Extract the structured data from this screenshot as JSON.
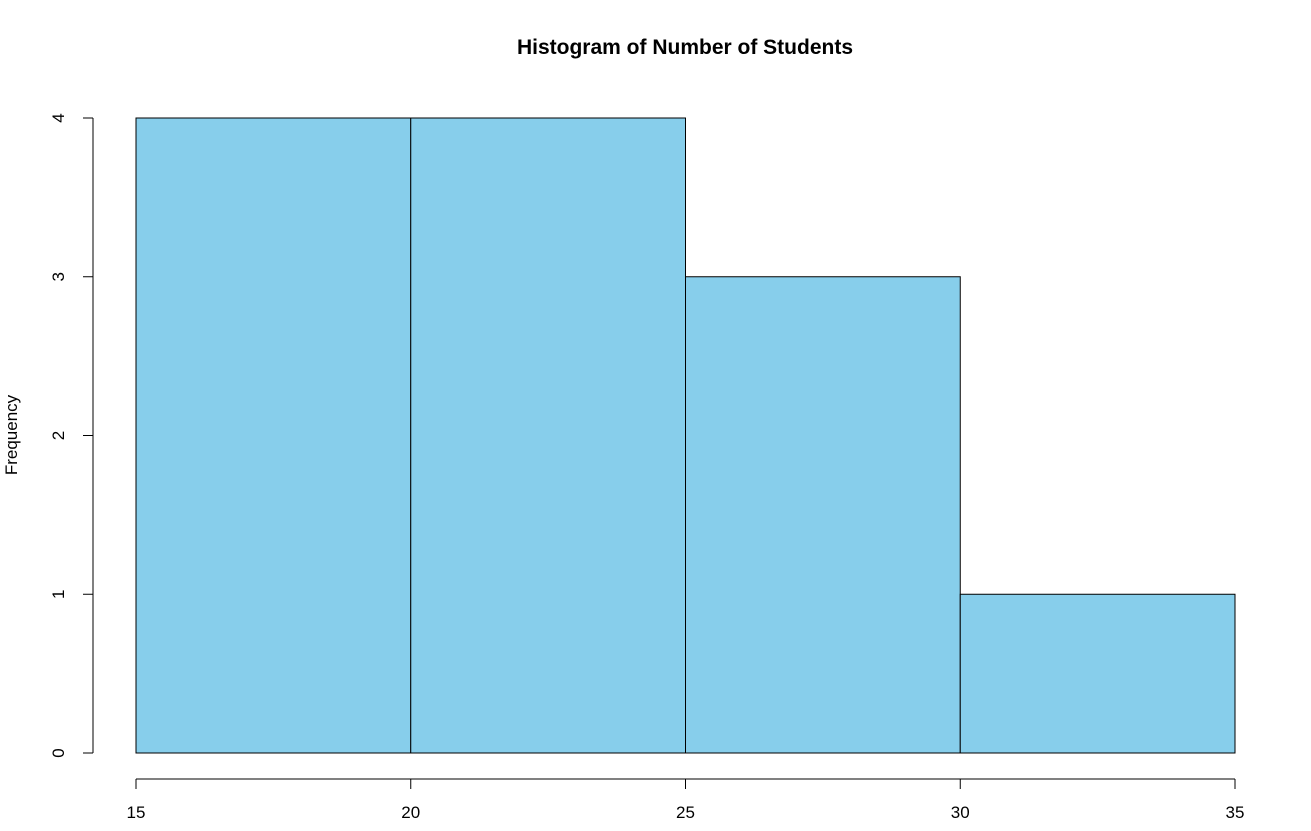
{
  "chart_data": {
    "type": "bar",
    "title": "Histogram of Number of Students",
    "xlabel": "",
    "ylabel": "Frequency",
    "bins": [
      {
        "start": 15,
        "end": 20,
        "value": 4
      },
      {
        "start": 20,
        "end": 25,
        "value": 4
      },
      {
        "start": 25,
        "end": 30,
        "value": 3
      },
      {
        "start": 30,
        "end": 35,
        "value": 1
      }
    ],
    "categories": [
      "15-20",
      "20-25",
      "25-30",
      "30-35"
    ],
    "values": [
      4,
      4,
      3,
      1
    ],
    "xlim": [
      15,
      35
    ],
    "ylim": [
      0,
      4
    ],
    "x_ticks": [
      "15",
      "20",
      "25",
      "30",
      "35"
    ],
    "y_ticks": [
      "0",
      "1",
      "2",
      "3",
      "4"
    ],
    "bar_color": "#87CEEB",
    "grid": false
  }
}
